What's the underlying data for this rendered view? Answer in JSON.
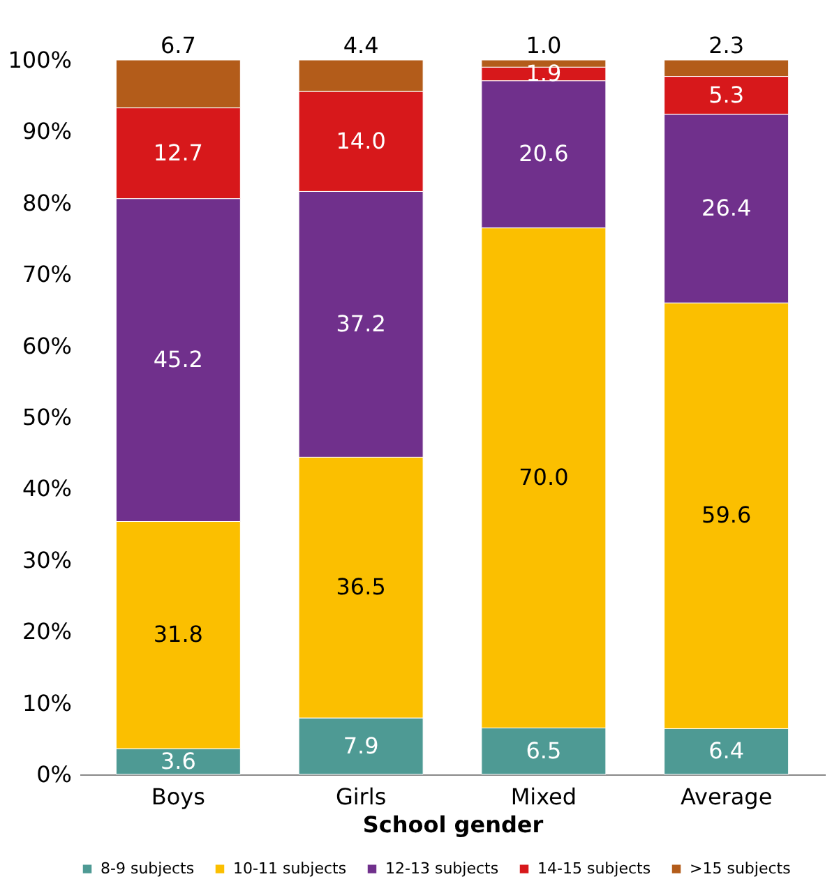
{
  "chart_data": {
    "type": "bar",
    "stacked": true,
    "xlabel": "School gender",
    "categories": [
      "Boys",
      "Girls",
      "Mixed",
      "Average"
    ],
    "series": [
      {
        "name": "8-9 subjects",
        "color": "#4e9a94",
        "values": [
          3.6,
          7.9,
          6.5,
          6.4
        ],
        "value_labels": [
          "3.6",
          "7.9",
          "6.5",
          "6.4"
        ]
      },
      {
        "name": "10-11 subjects",
        "color": "#fbbf00",
        "values": [
          31.8,
          36.5,
          70,
          59.6
        ],
        "value_labels": [
          "31.8",
          "36.5",
          "70.0",
          "59.6"
        ]
      },
      {
        "name": "12-13 subjects",
        "color": "#70308c",
        "values": [
          45.2,
          37.2,
          20.6,
          26.4
        ],
        "value_labels": [
          "45.2",
          "37.2",
          "20.6",
          "26.4"
        ]
      },
      {
        "name": "14-15 subjects",
        "color": "#d7181b",
        "values": [
          12.7,
          14,
          1.9,
          5.3
        ],
        "value_labels": [
          "12.7",
          "14.0",
          "1.9",
          "5.3"
        ]
      },
      {
        "name": ">15 subjects",
        "color": "#b35c1a",
        "values": [
          6.7,
          4.4,
          1,
          2.3
        ],
        "value_labels": [
          "6.7",
          "4.4",
          "1.0",
          "2.3"
        ]
      }
    ],
    "ylim": [
      0,
      100
    ],
    "yticks": [
      {
        "value": 0,
        "label": "0%"
      },
      {
        "value": 10,
        "label": "10%"
      },
      {
        "value": 20,
        "label": "20%"
      },
      {
        "value": 30,
        "label": "30%"
      },
      {
        "value": 40,
        "label": "40%"
      },
      {
        "value": 50,
        "label": "50%"
      },
      {
        "value": 60,
        "label": "60%"
      },
      {
        "value": 70,
        "label": "70%"
      },
      {
        "value": 80,
        "label": "80%"
      },
      {
        "value": 90,
        "label": "90%"
      },
      {
        "value": 100,
        "label": "100%"
      }
    ],
    "legend": "bottom",
    "grid": false
  }
}
